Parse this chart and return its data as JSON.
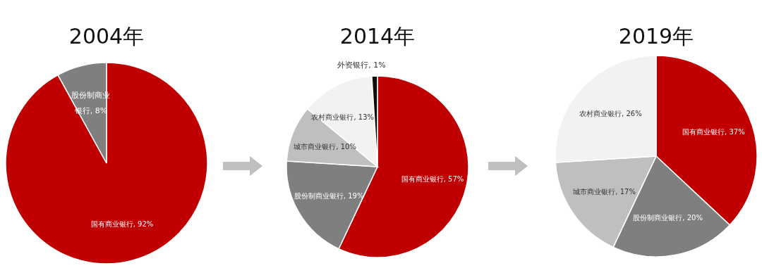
{
  "chart_data": [
    {
      "type": "pie",
      "title": "2004年",
      "categories": [
        "国有商业银行",
        "股份制商业银行"
      ],
      "values": [
        92,
        8
      ],
      "value_labels": [
        "92%",
        "8%"
      ],
      "colors": [
        "#c00000",
        "#7f7f7f"
      ],
      "data_labels": true
    },
    {
      "type": "pie",
      "title": "2014年",
      "categories": [
        "国有商业银行",
        "股份制商业银行",
        "城市商业银行",
        "农村商业银行",
        "外资银行"
      ],
      "values": [
        57,
        19,
        10,
        13,
        1
      ],
      "value_labels": [
        "57%",
        "19%",
        "10%",
        "13%",
        "1%"
      ],
      "colors": [
        "#c00000",
        "#7f7f7f",
        "#bfbfbf",
        "#f2f2f2",
        "#0d0d0d"
      ],
      "data_labels": true
    },
    {
      "type": "pie",
      "title": "2019年",
      "categories": [
        "国有商业银行",
        "股份制商业银行",
        "城市商业银行",
        "农村商业银行"
      ],
      "values": [
        37,
        20,
        17,
        26
      ],
      "value_labels": [
        "37%",
        "20%",
        "17%",
        "26%"
      ],
      "colors": [
        "#c00000",
        "#7f7f7f",
        "#bfbfbf",
        "#f2f2f2"
      ],
      "data_labels": true
    }
  ]
}
